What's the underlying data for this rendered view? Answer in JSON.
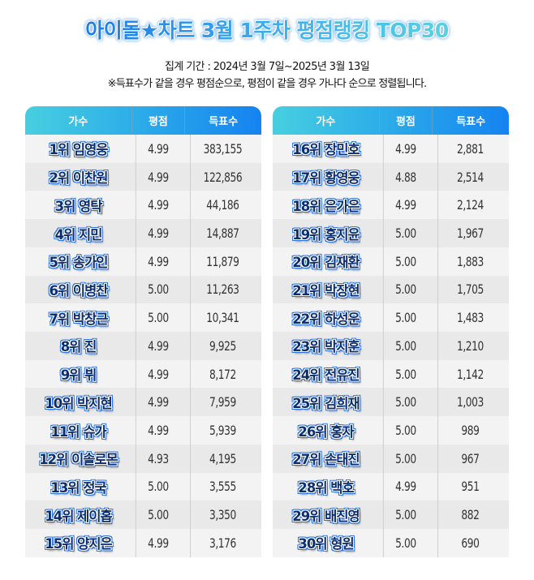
{
  "header": {
    "title": "아이돌★차트 3월 1주차 평점랭킹 TOP30",
    "period": "집계 기간 : 2024년 3월 7일~2025년 3월 13일",
    "note": "※득표수가 같을 경우 평점순으로, 평점이 같을 경우 가나다 순으로 정렬됩니다."
  },
  "columns": {
    "singer": "가수",
    "rating": "평점",
    "votes": "득표수"
  },
  "colors": {
    "header_gradient_start": "#47cfe0",
    "header_gradient_end": "#1583f0",
    "title_gradient_start": "#1b7be6",
    "title_gradient_end": "#56d3e2",
    "name_fill": "#0c2d6e",
    "name_outline": "#2a6fd9",
    "row_odd": "#f3f3f3",
    "row_even": "#e9e9e9"
  },
  "left_table": {
    "rows": [
      {
        "name": "1위 임영웅",
        "rating": "4.99",
        "votes": "383,155"
      },
      {
        "name": "2위 이찬원",
        "rating": "4.99",
        "votes": "122,856"
      },
      {
        "name": "3위 영탁",
        "rating": "4.99",
        "votes": "44,186"
      },
      {
        "name": "4위 지민",
        "rating": "4.99",
        "votes": "14,887"
      },
      {
        "name": "5위 송가인",
        "rating": "4.99",
        "votes": "11,879"
      },
      {
        "name": "6위 이병찬",
        "rating": "5.00",
        "votes": "11,263"
      },
      {
        "name": "7위 박창근",
        "rating": "5.00",
        "votes": "10,341"
      },
      {
        "name": "8위 진",
        "rating": "4.99",
        "votes": "9,925"
      },
      {
        "name": "9위 뷔",
        "rating": "4.99",
        "votes": "8,172"
      },
      {
        "name": "10위 박지현",
        "rating": "4.99",
        "votes": "7,959"
      },
      {
        "name": "11위 슈가",
        "rating": "4.99",
        "votes": "5,939"
      },
      {
        "name": "12위 이솔로몬",
        "rating": "4.93",
        "votes": "4,195"
      },
      {
        "name": "13위 정국",
        "rating": "5.00",
        "votes": "3,555"
      },
      {
        "name": "14위 제이홉",
        "rating": "5.00",
        "votes": "3,350"
      },
      {
        "name": "15위 양지은",
        "rating": "4.99",
        "votes": "3,176"
      }
    ]
  },
  "right_table": {
    "rows": [
      {
        "name": "16위 장민호",
        "rating": "4.99",
        "votes": "2,881"
      },
      {
        "name": "17위 황영웅",
        "rating": "4.88",
        "votes": "2,514"
      },
      {
        "name": "18위 은가은",
        "rating": "4.99",
        "votes": "2,124"
      },
      {
        "name": "19위 홍지윤",
        "rating": "5.00",
        "votes": "1,967"
      },
      {
        "name": "20위 김재환",
        "rating": "5.00",
        "votes": "1,883"
      },
      {
        "name": "21위 박장현",
        "rating": "5.00",
        "votes": "1,705"
      },
      {
        "name": "22위 하성운",
        "rating": "5.00",
        "votes": "1,483"
      },
      {
        "name": "23위 박지훈",
        "rating": "5.00",
        "votes": "1,210"
      },
      {
        "name": "24위 전유진",
        "rating": "5.00",
        "votes": "1,142"
      },
      {
        "name": "25위 김희재",
        "rating": "5.00",
        "votes": "1,003"
      },
      {
        "name": "26위 홍자",
        "rating": "5.00",
        "votes": "989"
      },
      {
        "name": "27위 손태진",
        "rating": "5.00",
        "votes": "967"
      },
      {
        "name": "28위 백호",
        "rating": "4.99",
        "votes": "951"
      },
      {
        "name": "29위 배진영",
        "rating": "5.00",
        "votes": "882"
      },
      {
        "name": "30위 형원",
        "rating": "5.00",
        "votes": "690"
      }
    ]
  }
}
